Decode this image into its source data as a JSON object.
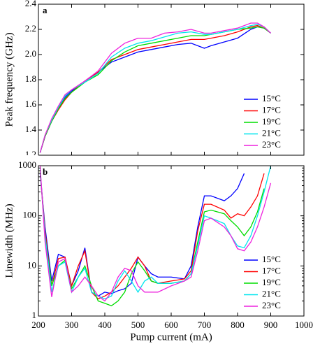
{
  "chart_data": [
    {
      "type": "line",
      "panel_label": "a",
      "y_label": "Peak frequency (GHz)",
      "x": [
        205,
        220,
        240,
        260,
        280,
        300,
        340,
        380,
        420,
        460,
        500,
        540,
        580,
        620,
        660,
        700,
        720,
        760,
        800,
        840,
        860,
        880,
        900
      ],
      "series": [
        {
          "name": "15°C",
          "color": "#0000ff",
          "values": [
            1.22,
            1.35,
            1.47,
            1.57,
            1.66,
            1.71,
            1.79,
            1.86,
            1.94,
            1.98,
            2.02,
            2.04,
            2.06,
            2.08,
            2.09,
            2.05,
            2.07,
            2.1,
            2.13,
            2.2,
            2.22,
            2.21,
            2.17
          ]
        },
        {
          "name": "17°C",
          "color": "#ff0000",
          "values": [
            1.22,
            1.35,
            1.47,
            1.56,
            1.64,
            1.7,
            1.79,
            1.86,
            1.96,
            2.0,
            2.04,
            2.06,
            2.08,
            2.1,
            2.12,
            2.12,
            2.13,
            2.15,
            2.18,
            2.22,
            2.23,
            2.21,
            2.17
          ]
        },
        {
          "name": "19°C",
          "color": "#00dd00",
          "values": [
            1.22,
            1.35,
            1.47,
            1.57,
            1.65,
            1.7,
            1.78,
            1.84,
            1.95,
            2.02,
            2.07,
            2.09,
            2.11,
            2.13,
            2.15,
            2.15,
            2.16,
            2.18,
            2.2,
            2.21,
            2.22,
            2.21,
            2.17
          ]
        },
        {
          "name": "21°C",
          "color": "#00e5ee",
          "values": [
            1.22,
            1.36,
            1.48,
            1.58,
            1.67,
            1.72,
            1.78,
            1.85,
            1.98,
            2.05,
            2.09,
            2.11,
            2.14,
            2.17,
            2.18,
            2.16,
            2.16,
            2.18,
            2.2,
            2.23,
            2.24,
            2.22,
            2.17
          ]
        },
        {
          "name": "23°C",
          "color": "#ee22dd",
          "values": [
            1.22,
            1.36,
            1.49,
            1.59,
            1.68,
            1.72,
            1.79,
            1.87,
            2.01,
            2.09,
            2.13,
            2.13,
            2.17,
            2.18,
            2.2,
            2.17,
            2.17,
            2.19,
            2.21,
            2.25,
            2.25,
            2.22,
            2.17
          ]
        }
      ],
      "xlim": [
        200,
        1000
      ],
      "xticks": [
        200,
        300,
        400,
        500,
        600,
        700,
        800,
        900,
        1000
      ],
      "ylim": [
        1.2,
        2.4
      ],
      "yticks": [
        1.2,
        1.4,
        1.6,
        1.8,
        {
          "value": 2,
          "label": "2.0"
        },
        2.2,
        2.4
      ],
      "legend": "lower right"
    },
    {
      "type": "line",
      "panel_label": "b",
      "y_label": "Linewidth (MHz)",
      "x_label": "Pump current (mA)",
      "x": [
        205,
        220,
        240,
        260,
        280,
        300,
        320,
        340,
        360,
        380,
        400,
        420,
        440,
        460,
        480,
        500,
        520,
        540,
        560,
        600,
        640,
        660,
        680,
        700,
        720,
        760,
        780,
        800,
        820,
        840,
        860,
        880,
        900
      ],
      "series": [
        {
          "name": "15°C",
          "color": "#0000ff",
          "values": [
            700,
            60,
            5,
            17,
            15,
            4,
            8,
            23,
            3,
            2.5,
            3,
            2.8,
            3.2,
            3.5,
            4.5,
            15,
            10,
            7,
            6,
            6,
            5.5,
            10,
            60,
            250,
            250,
            200,
            250,
            350,
            700,
            null,
            null,
            null,
            null
          ]
        },
        {
          "name": "17°C",
          "color": "#ff0000",
          "values": [
            800,
            50,
            4,
            14,
            15,
            4,
            10,
            20,
            3,
            2.2,
            2.5,
            3,
            4,
            6,
            9,
            15,
            10,
            5,
            4.5,
            5,
            5.5,
            8,
            50,
            170,
            170,
            130,
            90,
            110,
            100,
            150,
            250,
            700,
            null
          ]
        },
        {
          "name": "19°C",
          "color": "#00dd00",
          "values": [
            800,
            40,
            4,
            10,
            13,
            3.5,
            6,
            10,
            4,
            2,
            1.8,
            1.6,
            2,
            3,
            7,
            12,
            8,
            5,
            4.5,
            4.5,
            5,
            7,
            30,
            120,
            130,
            110,
            80,
            60,
            40,
            60,
            120,
            350,
            null
          ]
        },
        {
          "name": "21°C",
          "color": "#00e5ee",
          "values": [
            900,
            40,
            3,
            10,
            12,
            3,
            6,
            9,
            3,
            2.5,
            2.2,
            2.5,
            5,
            8,
            5,
            3,
            5,
            6,
            4.5,
            4.5,
            5,
            7,
            25,
            100,
            90,
            70,
            40,
            25,
            23,
            40,
            100,
            300,
            1000
          ]
        },
        {
          "name": "23°C",
          "color": "#ee22dd",
          "values": [
            1000,
            30,
            2.4,
            12,
            14,
            3,
            4,
            6,
            4,
            2.5,
            2,
            3,
            6,
            9,
            8,
            4,
            3,
            3,
            3,
            4,
            5,
            6,
            20,
            80,
            90,
            60,
            40,
            22,
            20,
            30,
            60,
            150,
            450
          ]
        }
      ],
      "xlim": [
        200,
        1000
      ],
      "xticks": [
        200,
        300,
        400,
        500,
        600,
        700,
        800,
        900,
        1000
      ],
      "ylim": [
        1,
        1000
      ],
      "yticks": [
        1,
        10,
        100,
        1000
      ],
      "yscale": "log",
      "legend": "lower right"
    }
  ]
}
